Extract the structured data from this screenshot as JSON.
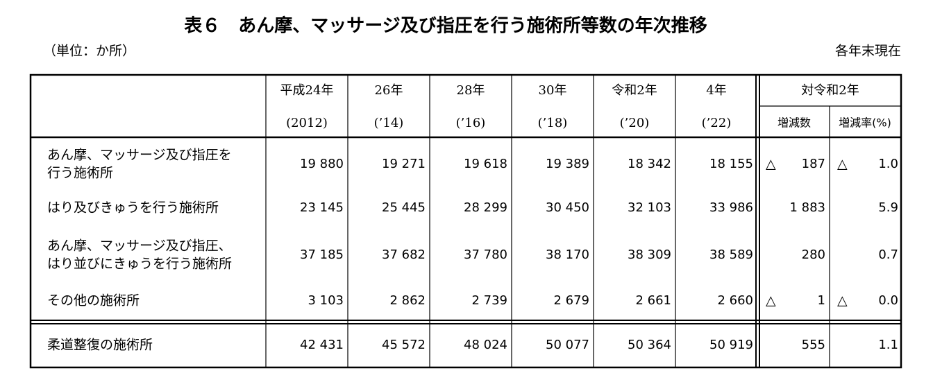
{
  "header": {
    "title": "表６　あん摩、マッサージ及び指圧を行う施術所等数の年次推移",
    "unit": "（単位：か所）",
    "as_of": "各年末現在"
  },
  "table": {
    "columns": [
      {
        "era": "平成24年",
        "year": "(2012)"
      },
      {
        "era": "26年",
        "year": "(’14)"
      },
      {
        "era": "28年",
        "year": "(’16)"
      },
      {
        "era": "30年",
        "year": "(’18)"
      },
      {
        "era": "令和2年",
        "year": "(’20)"
      },
      {
        "era": "4年",
        "year": "(’22)"
      }
    ],
    "compare_header": "対令和2年",
    "change_header": "増減数",
    "rate_header": "増減率(%)",
    "rows": [
      {
        "label": [
          "あん摩、マッサージ及び指圧を",
          "行う施術所"
        ],
        "values": [
          "19 880",
          "19 271",
          "19 618",
          "19 389",
          "18 342",
          "18 155"
        ],
        "change": {
          "sign": "△",
          "value": "187"
        },
        "rate": {
          "sign": "△",
          "value": "1.0"
        }
      },
      {
        "label": [
          "はり及びきゅうを行う施術所"
        ],
        "values": [
          "23 145",
          "25 445",
          "28 299",
          "30 450",
          "32 103",
          "33 986"
        ],
        "change": {
          "value": "1 883"
        },
        "rate": {
          "value": "5.9"
        }
      },
      {
        "label": [
          "あん摩、マッサージ及び指圧、",
          "はり並びにきゅうを行う施術所"
        ],
        "values": [
          "37 185",
          "37 682",
          "37 780",
          "38 170",
          "38 309",
          "38 589"
        ],
        "change": {
          "value": "280"
        },
        "rate": {
          "value": "0.7"
        }
      },
      {
        "label": [
          "その他の施術所"
        ],
        "values": [
          "3 103",
          "2 862",
          "2 739",
          "2 679",
          "2 661",
          "2 660"
        ],
        "change": {
          "sign": "△",
          "value": "1"
        },
        "rate": {
          "sign": "△",
          "value": "0.0"
        }
      },
      {
        "label": [
          "柔道整復の施術所"
        ],
        "values": [
          "42 431",
          "45 572",
          "48 024",
          "50 077",
          "50 364",
          "50 919"
        ],
        "change": {
          "value": "555"
        },
        "rate": {
          "value": "1.1"
        }
      }
    ]
  }
}
